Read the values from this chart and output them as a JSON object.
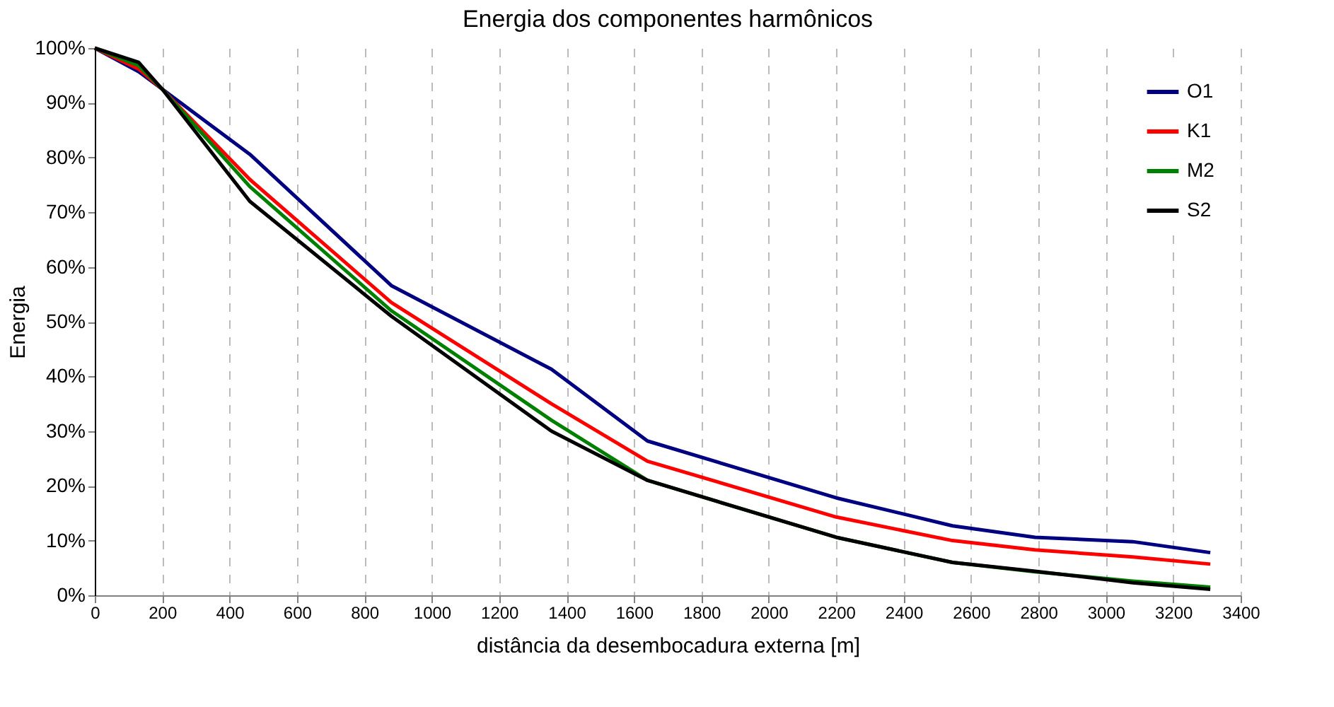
{
  "chart_data": {
    "type": "line",
    "title": "Energia dos componentes harmônicos",
    "xlabel": "distância da desembocadura externa [m]",
    "ylabel": "Energia",
    "x": [
      0,
      130,
      200,
      460,
      880,
      1355,
      1640,
      2200,
      2545,
      2790,
      3080,
      3310
    ],
    "series": [
      {
        "name": "O1",
        "color": "#000080",
        "values": [
          100,
          95.7,
          92.5,
          80.6,
          56.6,
          41.3,
          28.2,
          17.8,
          12.7,
          10.6,
          9.8,
          7.8
        ]
      },
      {
        "name": "K1",
        "color": "#ff0000",
        "values": [
          100,
          96.2,
          92.5,
          76,
          53.5,
          35,
          24.5,
          14.3,
          10,
          8.3,
          7,
          5.7
        ]
      },
      {
        "name": "M2",
        "color": "#008000",
        "values": [
          100,
          96.8,
          92.5,
          74.7,
          52,
          32,
          21,
          10.6,
          6,
          4.3,
          2.6,
          1.5
        ]
      },
      {
        "name": "S2",
        "color": "#000000",
        "values": [
          100,
          97.4,
          92.5,
          72,
          51,
          30,
          21,
          10.6,
          6,
          4.4,
          2.3,
          1.1
        ]
      }
    ],
    "xlim": [
      0,
      3400
    ],
    "xticks": [
      0,
      200,
      400,
      600,
      800,
      1000,
      1200,
      1400,
      1600,
      1800,
      2000,
      2200,
      2400,
      2600,
      2800,
      3000,
      3200,
      3400
    ],
    "ylim": [
      0,
      100
    ],
    "yticks": [
      {
        "value": 0,
        "label": "0%"
      },
      {
        "value": 10,
        "label": "10%"
      },
      {
        "value": 20,
        "label": "20%"
      },
      {
        "value": 30,
        "label": "30%"
      },
      {
        "value": 40,
        "label": "40%"
      },
      {
        "value": 50,
        "label": "50%"
      },
      {
        "value": 60,
        "label": "60%"
      },
      {
        "value": 70,
        "label": "70%"
      },
      {
        "value": 80,
        "label": "80%"
      },
      {
        "value": 90,
        "label": "90%"
      },
      {
        "value": 100,
        "label": "100%"
      }
    ],
    "grid": "x",
    "legend": "top right",
    "marker": "none",
    "line_style": "solid"
  }
}
